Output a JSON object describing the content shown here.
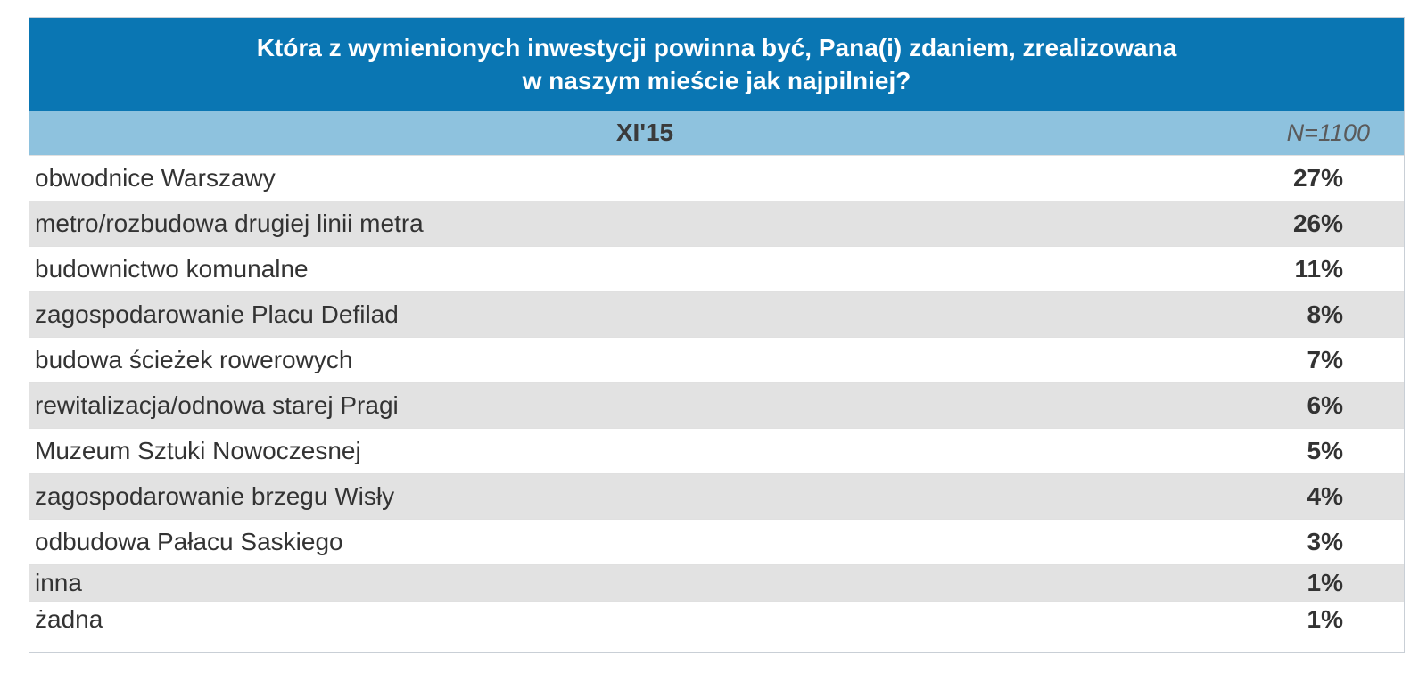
{
  "chart_data": {
    "type": "table",
    "title_lines": [
      "Która z wymienionych inwestycji powinna być, Pana(i) zdaniem, zrealizowana",
      "w naszym mieście jak najpilniej?"
    ],
    "period": "XI'15",
    "n_label": "N=1100",
    "rows": [
      {
        "label": "obwodnice Warszawy",
        "value": "27%"
      },
      {
        "label": "metro/rozbudowa drugiej linii metra",
        "value": "26%"
      },
      {
        "label": "budownictwo komunalne",
        "value": "11%"
      },
      {
        "label": "zagospodarowanie Placu Defilad",
        "value": "8%"
      },
      {
        "label": "budowa ścieżek rowerowych",
        "value": "7%"
      },
      {
        "label": "rewitalizacja/odnowa starej Pragi",
        "value": "6%"
      },
      {
        "label": "Muzeum Sztuki Nowoczesnej",
        "value": "5%"
      },
      {
        "label": "zagospodarowanie brzegu Wisły",
        "value": "4%"
      },
      {
        "label": "odbudowa Pałacu Saskiego",
        "value": "3%"
      },
      {
        "label": "inna",
        "value": "1%"
      },
      {
        "label": "żadna",
        "value": "1%"
      }
    ]
  },
  "colors": {
    "title_bg": "#0a76b3",
    "header_bg": "#8ec2de",
    "row_alt_bg": "#e2e2e2"
  }
}
